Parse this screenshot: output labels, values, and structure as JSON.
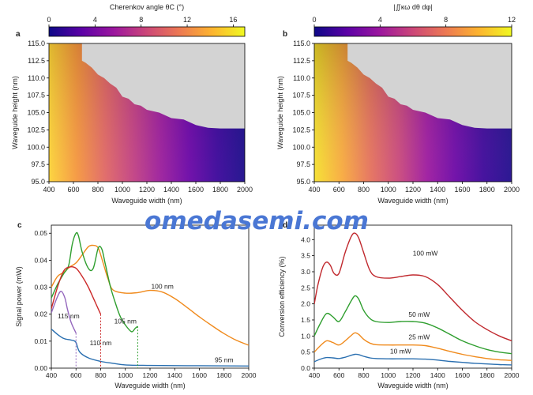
{
  "watermark": "omedasemi.com",
  "colors": {
    "plasma": [
      "#0d0887",
      "#5c01a6",
      "#9c179e",
      "#cc4778",
      "#ed7953",
      "#fdb42f",
      "#f0f921"
    ],
    "mask": "#d3d3d3",
    "line_95": "#2a6fb0",
    "line_100": "#f08a1c",
    "line_105": "#2e9e2e",
    "line_110": "#cc2a2a",
    "line_115": "#9467bd",
    "line_100mW": "#c0282d",
    "line_50mW": "#2e9e2e",
    "line_25mW": "#f08a1c",
    "line_10mW": "#2a6fb0"
  },
  "chart_data": [
    {
      "panel": "a",
      "type": "heatmap",
      "colorbar": {
        "label": "Cherenkov angle θC (°)",
        "ticks": [
          "0",
          "4",
          "8",
          "12",
          "16"
        ],
        "range": [
          0,
          17
        ]
      },
      "xlabel": "Waveguide width (nm)",
      "ylabel": "Waveguide height (nm)",
      "xticks": [
        "400",
        "600",
        "800",
        "1000",
        "1200",
        "1400",
        "1600",
        "1800",
        "2000"
      ],
      "yticks": [
        "95.0",
        "97.5",
        "100.0",
        "102.5",
        "105.0",
        "107.5",
        "110.0",
        "112.5",
        "115.0"
      ],
      "xlim": [
        400,
        2000
      ],
      "ylim": [
        95,
        115
      ],
      "boundary": [
        [
          400,
          115
        ],
        [
          500,
          115
        ],
        [
          670,
          115
        ],
        [
          670,
          112.5
        ],
        [
          700,
          112.2
        ],
        [
          750,
          111.5
        ],
        [
          800,
          110.5
        ],
        [
          850,
          110.0
        ],
        [
          900,
          109.2
        ],
        [
          950,
          108.6
        ],
        [
          1000,
          107.3
        ],
        [
          1050,
          107.0
        ],
        [
          1100,
          106.2
        ],
        [
          1150,
          106.0
        ],
        [
          1200,
          105.4
        ],
        [
          1300,
          105.0
        ],
        [
          1400,
          104.2
        ],
        [
          1500,
          104.0
        ],
        [
          1600,
          103.2
        ],
        [
          1700,
          102.8
        ],
        [
          1800,
          102.7
        ],
        [
          2000,
          102.7
        ]
      ]
    },
    {
      "panel": "b",
      "type": "heatmap",
      "colorbar": {
        "label": "|∬κω dθ dφ|",
        "ticks": [
          "0",
          "4",
          "8",
          "12"
        ],
        "range": [
          0,
          12
        ]
      },
      "xlabel": "Waveguide width (nm)",
      "ylabel": "Waveguide height (nm)",
      "xticks": [
        "400",
        "600",
        "800",
        "1000",
        "1200",
        "1400",
        "1600",
        "1800",
        "2000"
      ],
      "yticks": [
        "95.0",
        "97.5",
        "100.0",
        "102.5",
        "105.0",
        "107.5",
        "110.0",
        "112.5",
        "115.0"
      ],
      "xlim": [
        400,
        2000
      ],
      "ylim": [
        95,
        115
      ],
      "boundary": [
        [
          400,
          115
        ],
        [
          500,
          115
        ],
        [
          670,
          115
        ],
        [
          670,
          112.5
        ],
        [
          700,
          112.2
        ],
        [
          750,
          111.5
        ],
        [
          800,
          110.5
        ],
        [
          850,
          110.0
        ],
        [
          900,
          109.2
        ],
        [
          950,
          108.6
        ],
        [
          1000,
          107.3
        ],
        [
          1050,
          107.0
        ],
        [
          1100,
          106.2
        ],
        [
          1150,
          106.0
        ],
        [
          1200,
          105.4
        ],
        [
          1300,
          105.0
        ],
        [
          1400,
          104.2
        ],
        [
          1500,
          104.0
        ],
        [
          1600,
          103.2
        ],
        [
          1700,
          102.8
        ],
        [
          1800,
          102.7
        ],
        [
          2000,
          102.7
        ]
      ]
    },
    {
      "panel": "c",
      "type": "line",
      "xlabel": "Waveguide width (nm)",
      "ylabel": "Signal power (mW)",
      "xlim": [
        400,
        2000
      ],
      "ylim": [
        0,
        0.053
      ],
      "xticks": [
        "400",
        "600",
        "800",
        "1000",
        "1200",
        "1400",
        "1600",
        "1800",
        "2000"
      ],
      "yticks": [
        "0.00",
        "0.01",
        "0.02",
        "0.03",
        "0.04",
        "0.05"
      ],
      "series": [
        {
          "name": "95 nm",
          "color": "#2a6fb0",
          "label_pos": [
            1800,
            0.0022
          ],
          "x": [
            400,
            450,
            500,
            550,
            580,
            600,
            630,
            700,
            800,
            900,
            1000,
            1200,
            1500,
            2000
          ],
          "y": [
            0.0145,
            0.0125,
            0.011,
            0.0105,
            0.0102,
            0.0095,
            0.006,
            0.0038,
            0.0025,
            0.0018,
            0.0012,
            0.001,
            0.0009,
            0.0008
          ]
        },
        {
          "name": "100 nm",
          "color": "#f08a1c",
          "label_pos": [
            1300,
            0.0295
          ],
          "x": [
            400,
            450,
            500,
            550,
            600,
            650,
            700,
            740,
            780,
            820,
            860,
            900,
            1000,
            1100,
            1200,
            1300,
            1400,
            1500,
            1600,
            1700,
            1800,
            1900,
            2000
          ],
          "y": [
            0.03,
            0.034,
            0.0355,
            0.0375,
            0.039,
            0.042,
            0.045,
            0.0455,
            0.0445,
            0.039,
            0.033,
            0.029,
            0.0278,
            0.028,
            0.0288,
            0.0282,
            0.0258,
            0.0225,
            0.019,
            0.0158,
            0.0128,
            0.0103,
            0.0085
          ]
        },
        {
          "name": "105 nm",
          "color": "#2e9e2e",
          "label_pos": [
            1000,
            0.0165
          ],
          "x": [
            400,
            450,
            500,
            540,
            570,
            600,
            620,
            650,
            700,
            740,
            780,
            810,
            840,
            880,
            920,
            960,
            1000,
            1050,
            1080,
            1100
          ],
          "y": [
            0.026,
            0.031,
            0.035,
            0.038,
            0.046,
            0.05,
            0.049,
            0.043,
            0.037,
            0.037,
            0.0445,
            0.044,
            0.038,
            0.03,
            0.024,
            0.019,
            0.016,
            0.0135,
            0.0148,
            0.0155
          ]
        },
        {
          "name": "110 nm",
          "color": "#cc2a2a",
          "label_pos": [
            800,
            0.0085
          ],
          "x": [
            400,
            450,
            500,
            550,
            600,
            650,
            700,
            750,
            790,
            800
          ],
          "y": [
            0.022,
            0.03,
            0.036,
            0.0375,
            0.037,
            0.034,
            0.03,
            0.025,
            0.021,
            0.02
          ]
        },
        {
          "name": "115 nm",
          "color": "#9467bd",
          "label_pos": [
            540,
            0.0185
          ],
          "x": [
            400,
            450,
            480,
            510,
            530,
            560,
            600
          ],
          "y": [
            0.0205,
            0.0265,
            0.0285,
            0.026,
            0.022,
            0.017,
            0.013
          ]
        }
      ],
      "dashed_drops": [
        {
          "series": "115 nm",
          "x": 600,
          "from": 0.013
        },
        {
          "series": "110 nm",
          "x": 800,
          "from": 0.02
        },
        {
          "series": "105 nm",
          "x": 1100,
          "from": 0.0155
        }
      ]
    },
    {
      "panel": "d",
      "type": "line",
      "xlabel": "Waveguide width (nm)",
      "ylabel": "Conversion efficiency (%)",
      "xlim": [
        400,
        2000
      ],
      "ylim": [
        0,
        4.45
      ],
      "xticks": [
        "400",
        "600",
        "800",
        "1000",
        "1200",
        "1400",
        "1600",
        "1800",
        "2000"
      ],
      "yticks": [
        "0.0",
        "0.5",
        "1.0",
        "1.5",
        "2.0",
        "2.5",
        "3.0",
        "3.5",
        "4.0"
      ],
      "series": [
        {
          "name": "100 mW",
          "color": "#c0282d",
          "label_pos": [
            1300,
            3.5
          ],
          "x": [
            400,
            430,
            470,
            500,
            530,
            560,
            600,
            650,
            700,
            730,
            760,
            800,
            850,
            900,
            1000,
            1100,
            1200,
            1300,
            1400,
            1500,
            1600,
            1700,
            1800,
            1900,
            2000
          ],
          "y": [
            2.0,
            2.6,
            3.15,
            3.3,
            3.2,
            2.95,
            2.95,
            3.6,
            4.1,
            4.2,
            4.05,
            3.6,
            3.05,
            2.85,
            2.8,
            2.85,
            2.9,
            2.85,
            2.6,
            2.2,
            1.8,
            1.45,
            1.2,
            1.0,
            0.85
          ]
        },
        {
          "name": "50 mW",
          "color": "#2e9e2e",
          "label_pos": [
            1250,
            1.6
          ],
          "x": [
            400,
            450,
            500,
            550,
            600,
            650,
            700,
            730,
            760,
            800,
            850,
            900,
            1000,
            1100,
            1200,
            1300,
            1400,
            1500,
            1600,
            1700,
            1800,
            1900,
            2000
          ],
          "y": [
            1.0,
            1.4,
            1.7,
            1.6,
            1.45,
            1.75,
            2.1,
            2.25,
            2.15,
            1.8,
            1.55,
            1.45,
            1.42,
            1.45,
            1.45,
            1.4,
            1.25,
            1.05,
            0.85,
            0.7,
            0.58,
            0.5,
            0.45
          ]
        },
        {
          "name": "25 mW",
          "color": "#f08a1c",
          "label_pos": [
            1250,
            0.9
          ],
          "x": [
            400,
            450,
            500,
            550,
            600,
            650,
            700,
            730,
            760,
            800,
            850,
            900,
            1000,
            1100,
            1200,
            1300,
            1400,
            1500,
            1600,
            1700,
            1800,
            1900,
            2000
          ],
          "y": [
            0.5,
            0.7,
            0.85,
            0.8,
            0.72,
            0.85,
            1.02,
            1.1,
            1.05,
            0.9,
            0.78,
            0.73,
            0.72,
            0.72,
            0.72,
            0.7,
            0.62,
            0.52,
            0.43,
            0.36,
            0.3,
            0.26,
            0.24
          ]
        },
        {
          "name": "10 mW",
          "color": "#2a6fb0",
          "label_pos": [
            1100,
            0.45
          ],
          "x": [
            400,
            450,
            500,
            550,
            600,
            650,
            700,
            730,
            760,
            800,
            850,
            900,
            1000,
            1100,
            1200,
            1300,
            1400,
            1500,
            1600,
            1700,
            1800,
            1900,
            2000
          ],
          "y": [
            0.2,
            0.28,
            0.33,
            0.32,
            0.3,
            0.34,
            0.4,
            0.43,
            0.42,
            0.37,
            0.32,
            0.3,
            0.29,
            0.29,
            0.29,
            0.28,
            0.25,
            0.21,
            0.18,
            0.15,
            0.13,
            0.11,
            0.1
          ]
        }
      ]
    }
  ],
  "panel_labels": [
    "a",
    "b",
    "c",
    "d"
  ]
}
